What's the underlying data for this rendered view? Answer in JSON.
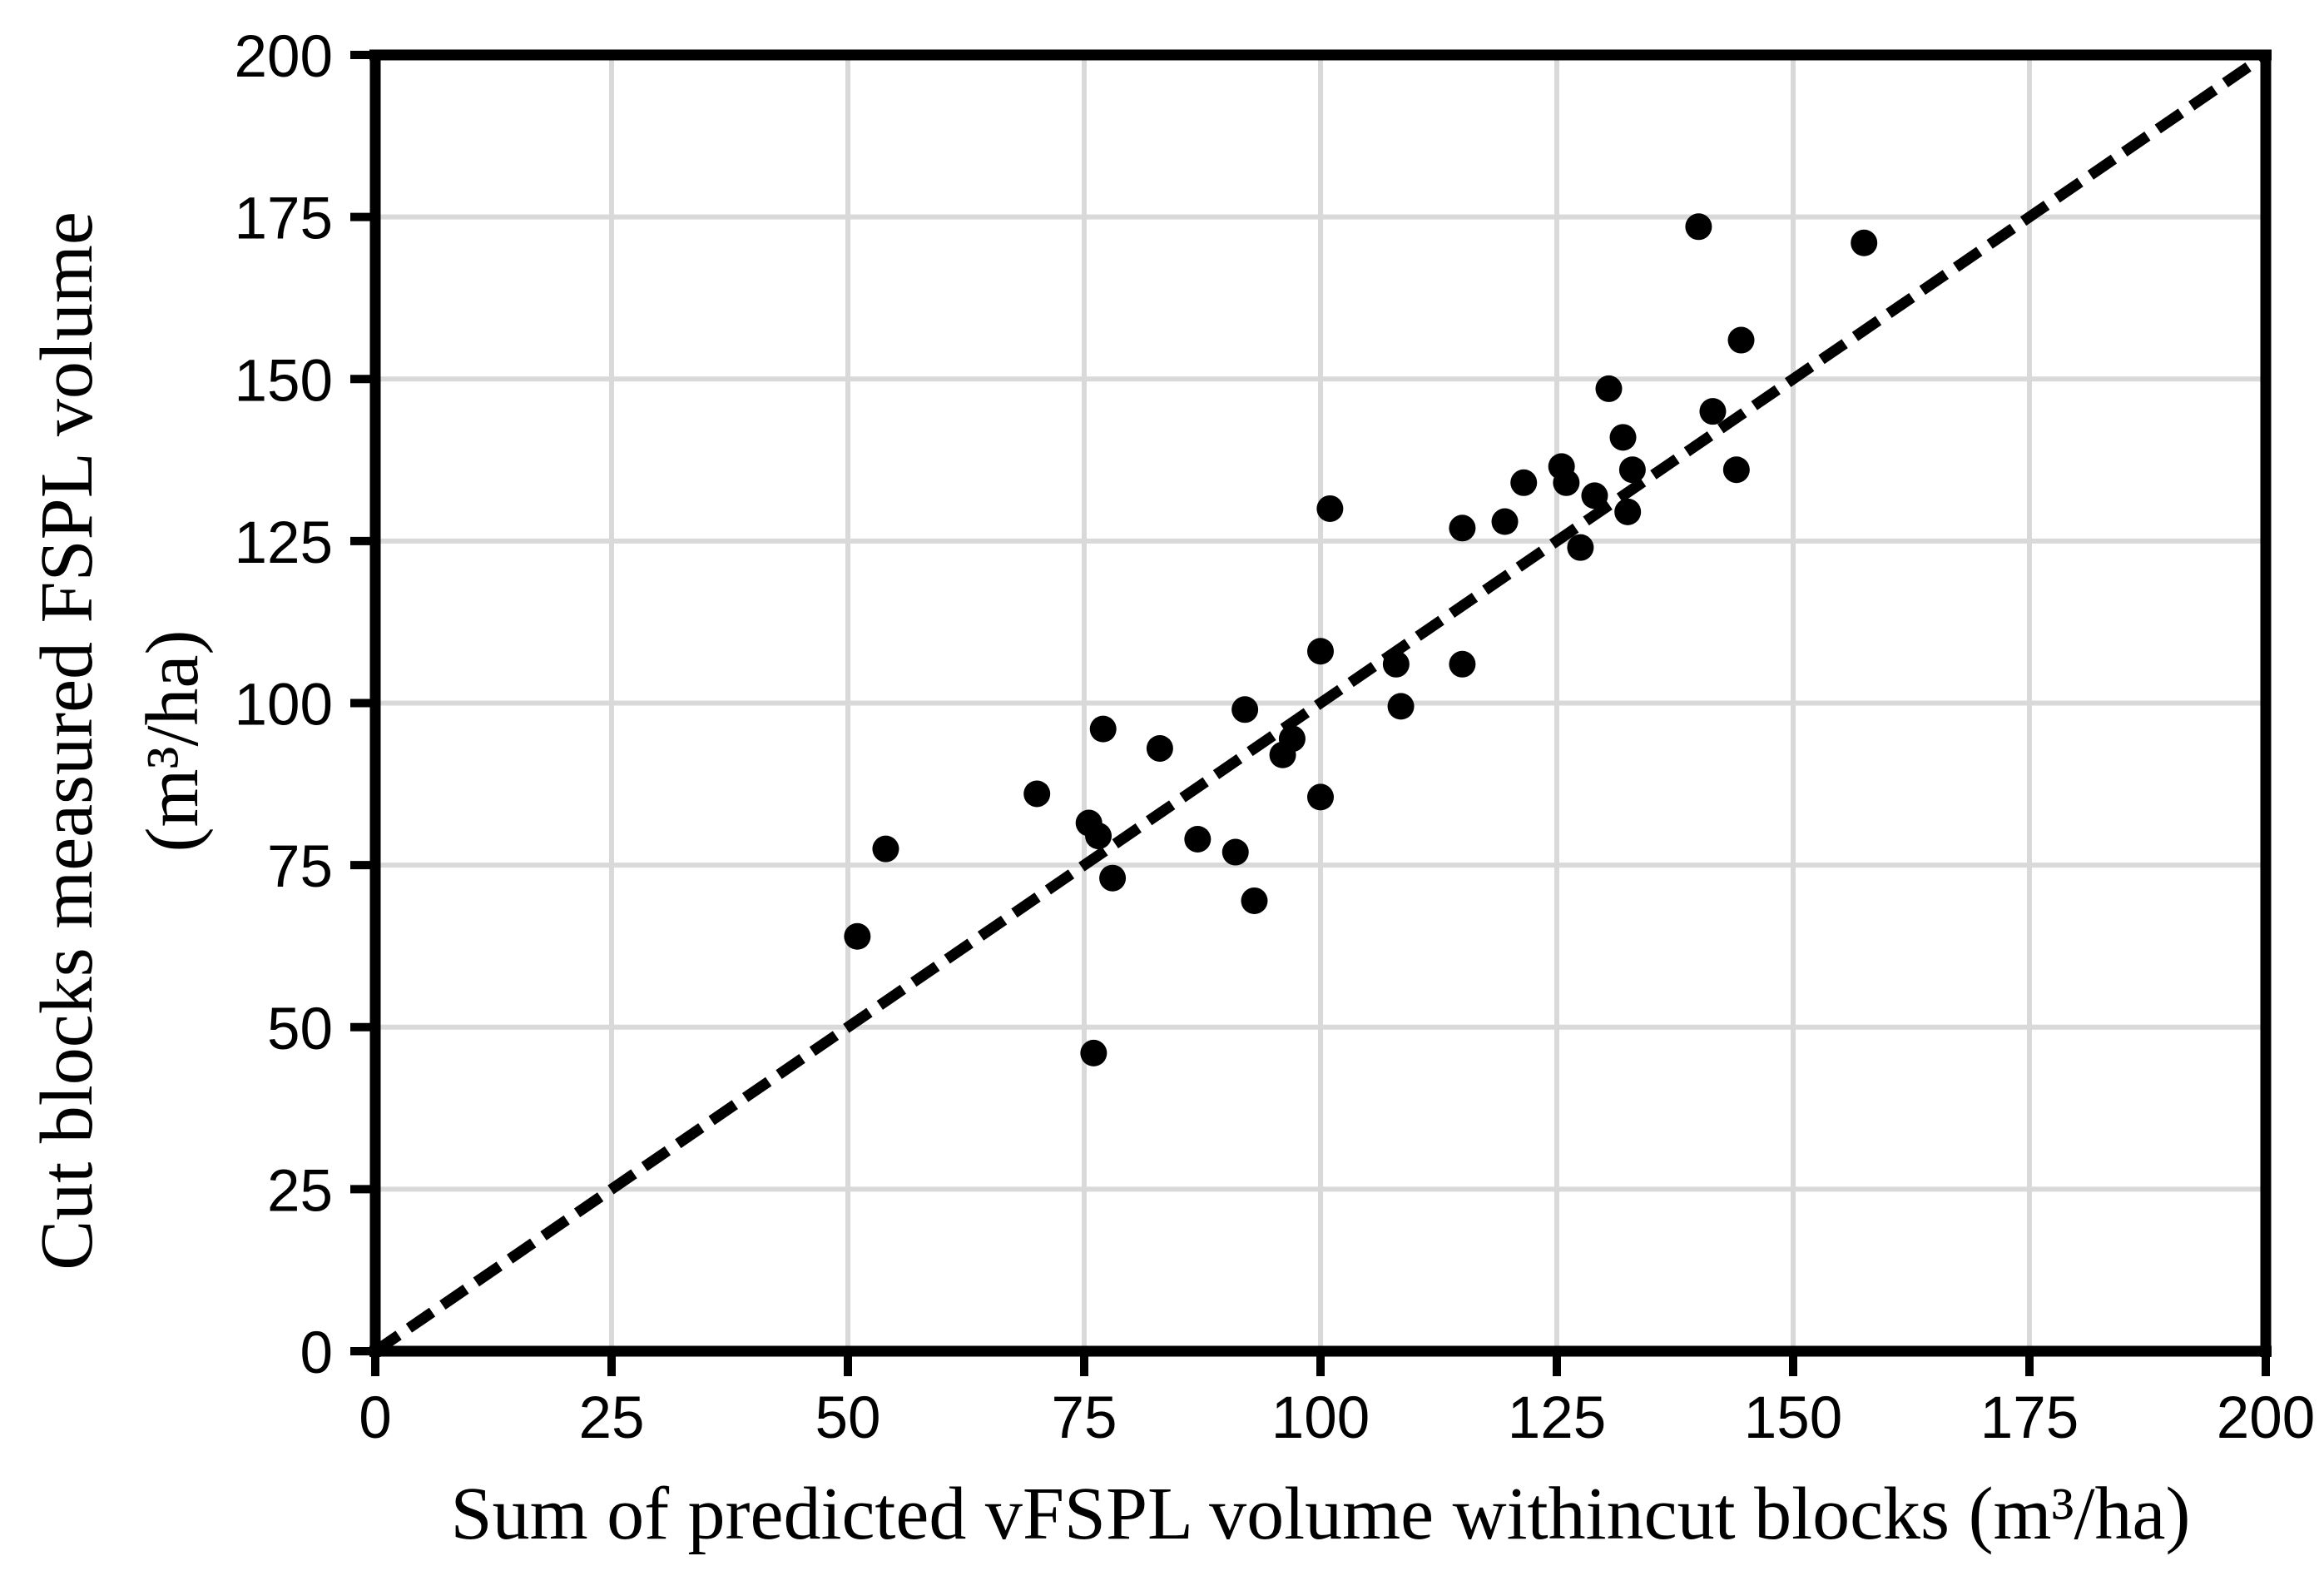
{
  "chart_data": {
    "type": "scatter",
    "title": "",
    "xlabel": "Sum of predicted vFSPL volume withincut blocks (m³/ha)",
    "ylabel_line1": "Cut blocks measured FSPL volume",
    "ylabel_line2": "(m³/ha)",
    "xlim": [
      0,
      200
    ],
    "ylim": [
      0,
      200
    ],
    "x_ticks": [
      0,
      25,
      50,
      75,
      100,
      125,
      150,
      175,
      200
    ],
    "y_ticks": [
      0,
      25,
      50,
      75,
      100,
      125,
      150,
      175,
      200
    ],
    "grid": true,
    "legend": "none",
    "reference_line": {
      "type": "identity",
      "style": "dashed",
      "from": [
        0,
        0
      ],
      "to": [
        200,
        200
      ]
    },
    "points": [
      [
        51,
        64
      ],
      [
        54,
        77.5
      ],
      [
        70,
        86
      ],
      [
        75.5,
        81.5
      ],
      [
        76.5,
        79.5
      ],
      [
        77,
        96
      ],
      [
        76,
        46
      ],
      [
        78,
        73
      ],
      [
        83,
        93
      ],
      [
        87,
        79
      ],
      [
        91,
        77
      ],
      [
        92,
        99
      ],
      [
        93,
        69.5
      ],
      [
        96,
        92
      ],
      [
        97,
        94.5
      ],
      [
        100,
        85.5
      ],
      [
        100,
        108
      ],
      [
        101,
        130
      ],
      [
        108,
        106
      ],
      [
        108.5,
        99.5
      ],
      [
        115,
        106
      ],
      [
        115,
        127
      ],
      [
        119.5,
        128
      ],
      [
        121.5,
        134
      ],
      [
        125.5,
        136.5
      ],
      [
        126,
        134
      ],
      [
        127.5,
        124
      ],
      [
        129,
        132
      ],
      [
        130.5,
        148.5
      ],
      [
        132,
        141
      ],
      [
        132.5,
        129.5
      ],
      [
        133,
        136
      ],
      [
        140,
        173.5
      ],
      [
        141.5,
        145
      ],
      [
        144,
        136
      ],
      [
        144.5,
        156
      ],
      [
        157.5,
        171
      ]
    ],
    "colors": {
      "point": "#000000",
      "line": "#000000",
      "grid": "#d9d9d9",
      "axis": "#000000",
      "background": "#ffffff"
    }
  }
}
